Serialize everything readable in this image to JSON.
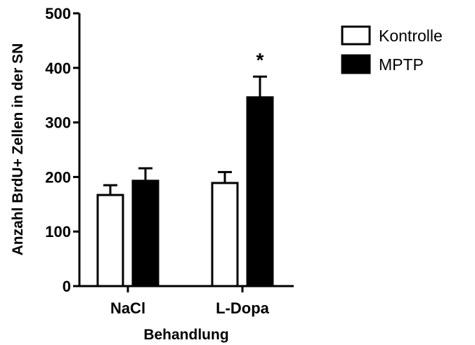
{
  "chart_data": {
    "type": "bar",
    "title": "",
    "xlabel": "Behandlung",
    "ylabel": "Anzahl BrdU+ Zellen in der SN",
    "categories": [
      "NaCl",
      "L-Dopa"
    ],
    "ylim": [
      0,
      500
    ],
    "yticks": [
      "0",
      "100",
      "200",
      "300",
      "400",
      "500"
    ],
    "series": [
      {
        "name": "Kontrolle",
        "values": [
          167,
          189
        ],
        "errors": [
          18,
          20
        ],
        "fill": "#ffffff"
      },
      {
        "name": "MPTP",
        "values": [
          193,
          346
        ],
        "errors": [
          23,
          38
        ],
        "fill": "#000000"
      }
    ],
    "annotations": [
      {
        "text": "*",
        "category_index": 1,
        "series_index": 1
      }
    ],
    "legend_position": "top-right",
    "grid": false
  }
}
